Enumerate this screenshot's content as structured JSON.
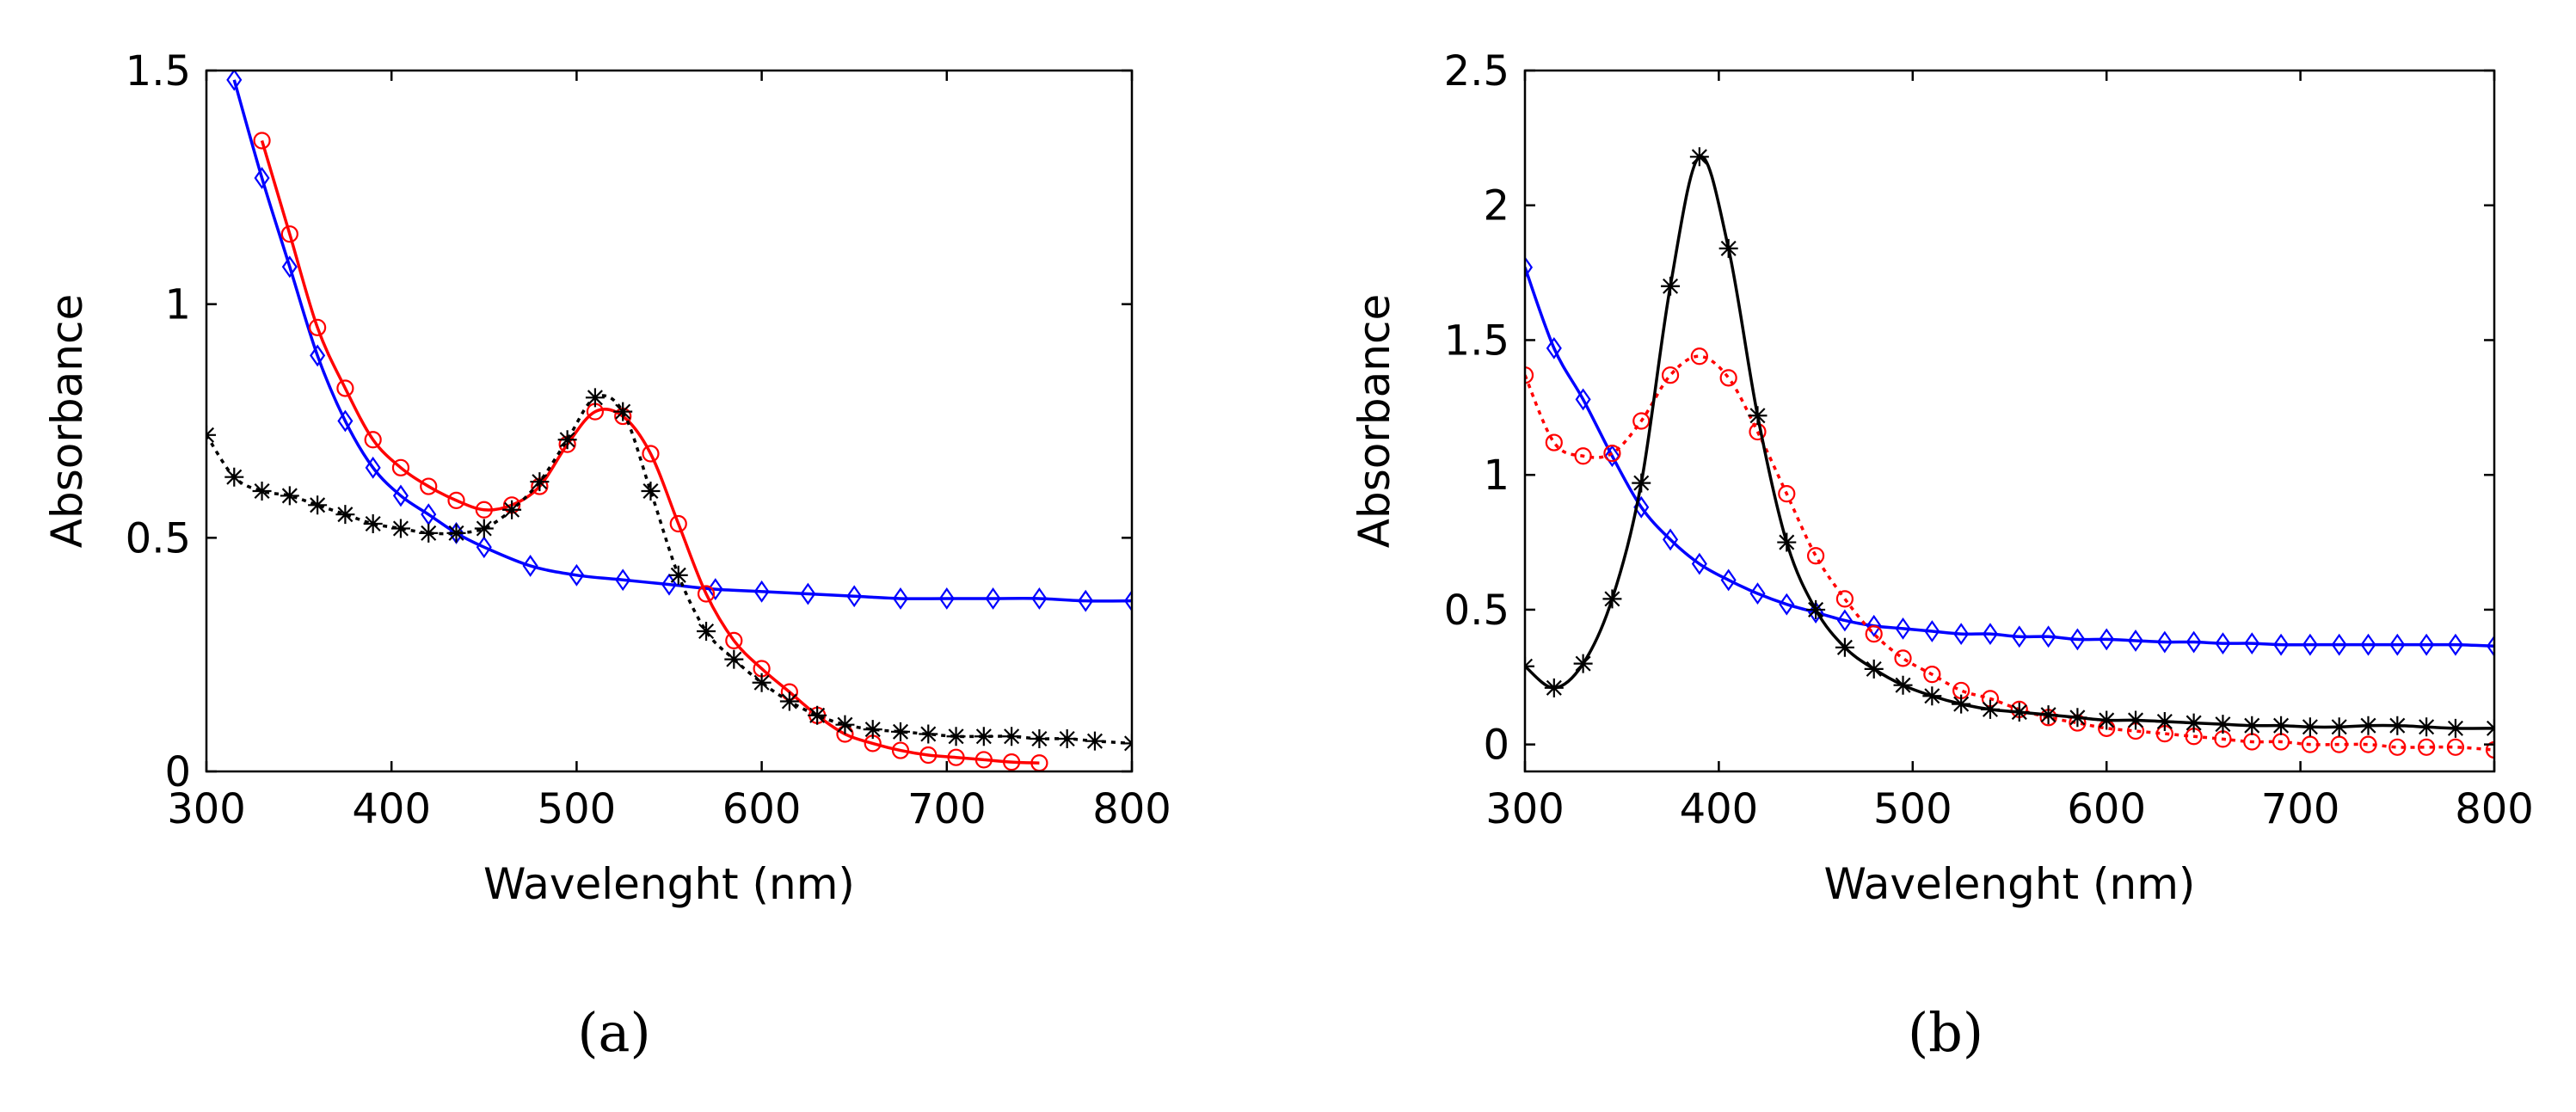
{
  "chart_data": [
    {
      "type": "line",
      "panel_label": "(a)",
      "xlabel": "Wavelenght (nm)",
      "ylabel": "Absorbance",
      "xlim": [
        300,
        800
      ],
      "ylim": [
        0,
        1.5
      ],
      "x_ticks": [
        300,
        400,
        500,
        600,
        700,
        800
      ],
      "y_ticks": [
        0,
        0.5,
        1,
        1.5
      ],
      "x_tick_labels": [
        "300",
        "400",
        "500",
        "600",
        "700",
        "800"
      ],
      "y_tick_labels": [
        "0",
        "0.5",
        "1",
        "1.5"
      ],
      "grid": false,
      "series": [
        {
          "color": "#0000ff",
          "marker": "diamond",
          "line": "solid",
          "x": [
            315,
            330,
            345,
            360,
            375,
            390,
            405,
            420,
            435,
            450,
            475,
            500,
            525,
            550,
            575,
            600,
            625,
            650,
            675,
            700,
            725,
            750,
            775,
            800
          ],
          "y": [
            1.48,
            1.27,
            1.08,
            0.89,
            0.75,
            0.65,
            0.59,
            0.55,
            0.51,
            0.48,
            0.44,
            0.42,
            0.41,
            0.4,
            0.39,
            0.385,
            0.38,
            0.375,
            0.37,
            0.37,
            0.37,
            0.37,
            0.365,
            0.365
          ]
        },
        {
          "color": "#ff0000",
          "marker": "circle",
          "line": "solid",
          "x": [
            330,
            345,
            360,
            375,
            390,
            405,
            420,
            435,
            450,
            465,
            480,
            495,
            510,
            525,
            540,
            555,
            570,
            585,
            600,
            615,
            630,
            645,
            660,
            675,
            690,
            705,
            720,
            735,
            750
          ],
          "y": [
            1.35,
            1.15,
            0.95,
            0.82,
            0.71,
            0.65,
            0.61,
            0.58,
            0.56,
            0.57,
            0.61,
            0.7,
            0.77,
            0.76,
            0.68,
            0.53,
            0.38,
            0.28,
            0.22,
            0.17,
            0.12,
            0.08,
            0.06,
            0.045,
            0.035,
            0.03,
            0.025,
            0.02,
            0.018
          ]
        },
        {
          "color": "#000000",
          "marker": "asterisk",
          "line": "dotted",
          "x": [
            300,
            315,
            330,
            345,
            360,
            375,
            390,
            405,
            420,
            435,
            450,
            465,
            480,
            495,
            510,
            525,
            540,
            555,
            570,
            585,
            600,
            615,
            630,
            645,
            660,
            675,
            690,
            705,
            720,
            735,
            750,
            765,
            780,
            800
          ],
          "y": [
            0.72,
            0.63,
            0.6,
            0.59,
            0.57,
            0.55,
            0.53,
            0.52,
            0.51,
            0.51,
            0.52,
            0.56,
            0.62,
            0.71,
            0.8,
            0.77,
            0.6,
            0.42,
            0.3,
            0.24,
            0.19,
            0.15,
            0.12,
            0.1,
            0.09,
            0.085,
            0.08,
            0.075,
            0.075,
            0.075,
            0.07,
            0.07,
            0.065,
            0.06
          ]
        }
      ]
    },
    {
      "type": "line",
      "panel_label": "(b)",
      "xlabel": "Wavelenght (nm)",
      "ylabel": "Absorbance",
      "xlim": [
        300,
        800
      ],
      "ylim": [
        -0.1,
        2.5
      ],
      "x_ticks": [
        300,
        400,
        500,
        600,
        700,
        800
      ],
      "y_ticks": [
        0,
        0.5,
        1,
        1.5,
        2,
        2.5
      ],
      "x_tick_labels": [
        "300",
        "400",
        "500",
        "600",
        "700",
        "800"
      ],
      "y_tick_labels": [
        "0",
        "0.5",
        "1",
        "1.5",
        "2",
        "2.5"
      ],
      "grid": false,
      "series": [
        {
          "color": "#0000ff",
          "marker": "diamond",
          "line": "solid",
          "x": [
            300,
            315,
            330,
            345,
            360,
            375,
            390,
            405,
            420,
            435,
            450,
            465,
            480,
            495,
            510,
            525,
            540,
            555,
            570,
            585,
            600,
            615,
            630,
            645,
            660,
            675,
            690,
            705,
            720,
            735,
            750,
            765,
            780,
            800
          ],
          "y": [
            1.77,
            1.47,
            1.28,
            1.07,
            0.88,
            0.76,
            0.67,
            0.61,
            0.56,
            0.52,
            0.49,
            0.46,
            0.44,
            0.43,
            0.42,
            0.41,
            0.41,
            0.4,
            0.4,
            0.39,
            0.39,
            0.385,
            0.38,
            0.38,
            0.375,
            0.375,
            0.37,
            0.37,
            0.37,
            0.37,
            0.37,
            0.37,
            0.37,
            0.365
          ]
        },
        {
          "color": "#ff0000",
          "marker": "circle",
          "line": "dotted",
          "x": [
            300,
            315,
            330,
            345,
            360,
            375,
            390,
            405,
            420,
            435,
            450,
            465,
            480,
            495,
            510,
            525,
            540,
            555,
            570,
            585,
            600,
            615,
            630,
            645,
            660,
            675,
            690,
            705,
            720,
            735,
            750,
            765,
            780,
            800
          ],
          "y": [
            1.37,
            1.12,
            1.07,
            1.08,
            1.2,
            1.37,
            1.44,
            1.36,
            1.16,
            0.93,
            0.7,
            0.54,
            0.41,
            0.32,
            0.26,
            0.2,
            0.17,
            0.13,
            0.1,
            0.08,
            0.06,
            0.05,
            0.04,
            0.03,
            0.02,
            0.01,
            0.01,
            0.0,
            0.0,
            0.0,
            -0.01,
            -0.01,
            -0.01,
            -0.02
          ]
        },
        {
          "color": "#000000",
          "marker": "asterisk",
          "line": "solid",
          "x": [
            300,
            315,
            330,
            345,
            360,
            375,
            390,
            405,
            420,
            435,
            450,
            465,
            480,
            495,
            510,
            525,
            540,
            555,
            570,
            585,
            600,
            615,
            630,
            645,
            660,
            675,
            690,
            705,
            720,
            735,
            750,
            765,
            780,
            800
          ],
          "y": [
            0.29,
            0.21,
            0.3,
            0.54,
            0.97,
            1.7,
            2.18,
            1.84,
            1.22,
            0.75,
            0.5,
            0.36,
            0.28,
            0.22,
            0.18,
            0.15,
            0.13,
            0.12,
            0.11,
            0.1,
            0.09,
            0.09,
            0.085,
            0.08,
            0.075,
            0.07,
            0.07,
            0.065,
            0.065,
            0.07,
            0.07,
            0.065,
            0.06,
            0.06
          ]
        }
      ]
    }
  ]
}
